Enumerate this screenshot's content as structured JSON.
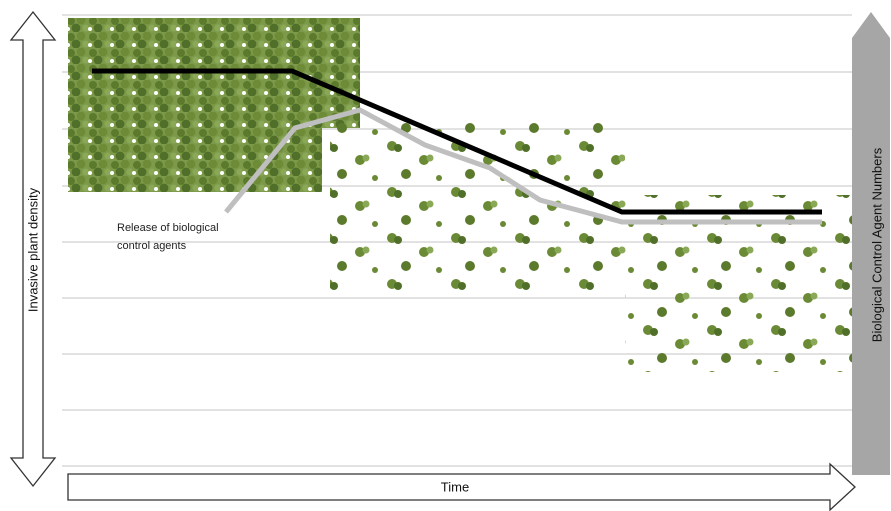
{
  "axes": {
    "left": "Invasive plant density",
    "right": "Biological Control Agent Numbers",
    "bottom": "Time"
  },
  "annotation": {
    "lines": [
      "Release of biological",
      "control agents"
    ]
  }
}
